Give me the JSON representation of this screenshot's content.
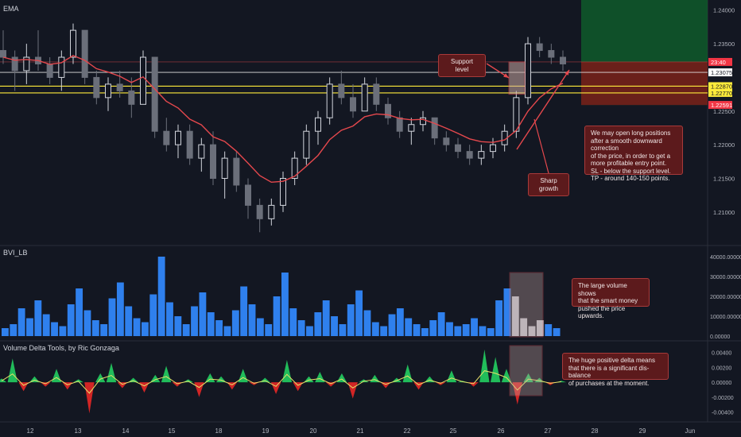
{
  "panels": {
    "price_title": "EMA",
    "volume_title": "BVI_LB",
    "delta_title": "Volume Delta Tools, by Ric Gonzaga"
  },
  "chart_data": [
    {
      "type": "candlestick",
      "title": "EMA",
      "ylim": [
        1.2055,
        1.2415
      ],
      "y_ticks": [
        "1.24000",
        "1.23500",
        "1.22500",
        "1.22000",
        "1.21500",
        "1.21000"
      ],
      "price_tags": [
        {
          "text": "23:40",
          "value": 1.2323,
          "color": "#f23645"
        },
        {
          "text": "1.23075",
          "value": 1.23075,
          "color": "#ffffff"
        },
        {
          "text": "1.22870",
          "value": 1.2287,
          "color": "#ffeb3b"
        },
        {
          "text": "1.22770",
          "value": 1.2277,
          "color": "#ffeb3b"
        },
        {
          "text": "1.22591",
          "value": 1.22591,
          "color": "#f23645"
        }
      ],
      "support_band": [
        1.2277,
        1.2287
      ],
      "take_profit_zone": [
        1.2259,
        1.2415
      ],
      "stop_loss_zone": [
        1.2259,
        1.2323
      ],
      "series": [
        {
          "kind": "candles",
          "ohlc_sample": [
            [
              1.234,
              1.237,
              1.232,
              1.233
            ],
            [
              1.233,
              1.234,
              1.228,
              1.231
            ],
            [
              1.231,
              1.235,
              1.229,
              1.233
            ],
            [
              1.233,
              1.237,
              1.231,
              1.232
            ],
            [
              1.232,
              1.233,
              1.229,
              1.23
            ],
            [
              1.23,
              1.234,
              1.228,
              1.233
            ],
            [
              1.233,
              1.238,
              1.232,
              1.237
            ],
            [
              1.237,
              1.237,
              1.229,
              1.23
            ],
            [
              1.23,
              1.231,
              1.226,
              1.227
            ],
            [
              1.227,
              1.23,
              1.225,
              1.229
            ],
            [
              1.229,
              1.231,
              1.227,
              1.228
            ],
            [
              1.228,
              1.23,
              1.224,
              1.226
            ],
            [
              1.226,
              1.234,
              1.226,
              1.233
            ],
            [
              1.233,
              1.233,
              1.221,
              1.222
            ],
            [
              1.222,
              1.224,
              1.219,
              1.22
            ],
            [
              1.22,
              1.223,
              1.218,
              1.222
            ],
            [
              1.222,
              1.223,
              1.217,
              1.218
            ],
            [
              1.218,
              1.221,
              1.216,
              1.22
            ],
            [
              1.22,
              1.222,
              1.214,
              1.215
            ],
            [
              1.215,
              1.219,
              1.212,
              1.218
            ],
            [
              1.218,
              1.219,
              1.213,
              1.214
            ],
            [
              1.214,
              1.215,
              1.209,
              1.211
            ],
            [
              1.211,
              1.212,
              1.207,
              1.209
            ],
            [
              1.209,
              1.212,
              1.208,
              1.211
            ],
            [
              1.211,
              1.216,
              1.21,
              1.215
            ],
            [
              1.215,
              1.219,
              1.214,
              1.218
            ],
            [
              1.218,
              1.223,
              1.217,
              1.222
            ],
            [
              1.222,
              1.225,
              1.22,
              1.224
            ],
            [
              1.224,
              1.23,
              1.223,
              1.229
            ],
            [
              1.229,
              1.231,
              1.226,
              1.227
            ],
            [
              1.227,
              1.229,
              1.224,
              1.225
            ],
            [
              1.225,
              1.23,
              1.225,
              1.229
            ],
            [
              1.229,
              1.23,
              1.225,
              1.226
            ],
            [
              1.226,
              1.227,
              1.223,
              1.224
            ],
            [
              1.224,
              1.225,
              1.221,
              1.222
            ],
            [
              1.222,
              1.224,
              1.22,
              1.223
            ],
            [
              1.223,
              1.225,
              1.222,
              1.224
            ],
            [
              1.224,
              1.224,
              1.22,
              1.221
            ],
            [
              1.221,
              1.222,
              1.219,
              1.22
            ],
            [
              1.22,
              1.221,
              1.218,
              1.219
            ],
            [
              1.219,
              1.22,
              1.217,
              1.218
            ],
            [
              1.218,
              1.22,
              1.217,
              1.219
            ],
            [
              1.219,
              1.221,
              1.218,
              1.22
            ],
            [
              1.22,
              1.223,
              1.219,
              1.222
            ],
            [
              1.222,
              1.228,
              1.221,
              1.227
            ],
            [
              1.227,
              1.236,
              1.226,
              1.235
            ],
            [
              1.235,
              1.236,
              1.233,
              1.234
            ],
            [
              1.234,
              1.235,
              1.232,
              1.233
            ],
            [
              1.233,
              1.234,
              1.231,
              1.232
            ]
          ]
        },
        {
          "kind": "ema",
          "color": "#e5484d"
        }
      ],
      "x_ticks": [
        "12",
        "13",
        "14",
        "15",
        "18",
        "19",
        "20",
        "21",
        "22",
        "25",
        "26",
        "27",
        "28",
        "29",
        "Jun"
      ]
    },
    {
      "type": "bar",
      "title": "BVI_LB",
      "ylim": [
        0,
        42000
      ],
      "y_ticks": [
        "40000.00000",
        "30000.00000",
        "20000.00000",
        "10000.00000",
        "0.00000"
      ],
      "series": [
        {
          "values": [
            4000,
            6000,
            14000,
            9000,
            18000,
            11000,
            7000,
            5000,
            16000,
            24000,
            13000,
            8000,
            6000,
            19000,
            27000,
            15000,
            9000,
            7000,
            21000,
            40000,
            17000,
            10000,
            6000,
            15000,
            22000,
            12000,
            8000,
            5000,
            13000,
            25000,
            16000,
            9000,
            6000,
            20000,
            32000,
            14000,
            8000,
            5000,
            12000,
            18000,
            10000,
            6000,
            16000,
            23000,
            13000,
            7000,
            5000,
            11000,
            14000,
            9000,
            6000,
            4000,
            8000,
            12000,
            7000,
            5000,
            6000,
            9000,
            5000,
            4000,
            18000,
            24000,
            20000,
            9000,
            5000,
            8000,
            6000,
            4000
          ]
        }
      ]
    },
    {
      "type": "area",
      "title": "Volume Delta Tools, by Ric Gonzaga",
      "ylim": [
        -0.0048,
        0.0046
      ],
      "y_ticks": [
        "0.00400",
        "0.00200",
        "0.00000",
        "-0.00200",
        "-0.00400"
      ],
      "series": [
        {
          "name": "",
          "values": [
            0.0005,
            0.0032,
            -0.0012,
            0.0008,
            -0.0006,
            0.0018,
            -0.001,
            0.0004,
            -0.0042,
            0.0012,
            0.0026,
            -0.0008,
            0.0006,
            -0.0014,
            0.001,
            0.0022,
            -0.0006,
            0.0004,
            -0.002,
            0.0012,
            0.0008,
            -0.001,
            0.0018,
            -0.0004,
            0.0006,
            -0.0016,
            0.003,
            -0.0012,
            0.0008,
            0.0014,
            -0.0006,
            0.0012,
            -0.0022,
            0.0004,
            0.001,
            -0.0008,
            0.0006,
            0.0024,
            -0.001,
            0.0008,
            -0.0004,
            0.0016,
            0.0002,
            -0.0006,
            0.0044,
            0.0034,
            0.0018,
            -0.003,
            0.0012,
            0.0006,
            -0.0004,
            0.0002
          ]
        }
      ]
    }
  ],
  "annotations": {
    "support_level": "Support level",
    "sharp_growth": "Sharp growth",
    "main_note": "We may open long positions\nafter a smooth downward correction\nof the price, in order to get a\nmore profitable entry point.\nSL - below the support level.\nTP - around 140-150 points.",
    "volume_note": "The large volume shows\nthat the smart money\npushed the price upwards.",
    "delta_note": "The huge positive delta means\nthat there is a significant dis-balance\nof purchases at the moment."
  },
  "colors": {
    "background": "#131722",
    "up_candle": "#d1d4dc",
    "down_candle": "#6b6f7a",
    "ema": "#e5484d",
    "support_line": "#ffeb3b",
    "volume_bar": "#2f80ed",
    "volume_highlight": "#b7bcc7",
    "delta_pos": "#22c55e",
    "delta_neg": "#dc2626",
    "delta_line": "#e8e26a",
    "tp_zone": "#0f5a2a",
    "sl_zone": "#7a1717",
    "annotation_bg": "#5c1a1c"
  }
}
